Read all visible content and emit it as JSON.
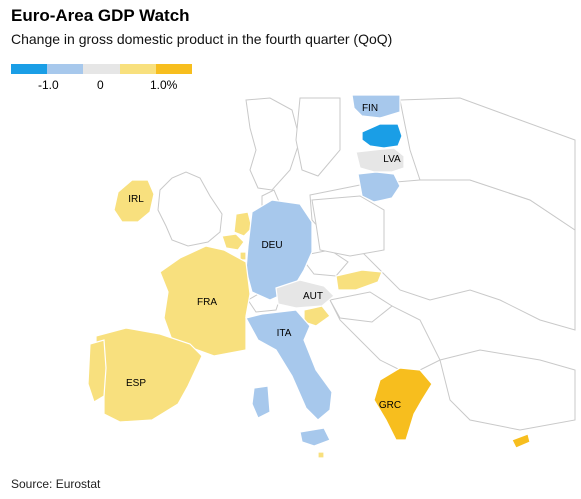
{
  "header": {
    "title": "Euro-Area GDP Watch",
    "subtitle": "Change in gross domestic product in the fourth quarter (QoQ)"
  },
  "legend": {
    "colors": [
      "#1a9ee6",
      "#a7c8ec",
      "#e6e6e6",
      "#f8e07e",
      "#f7be1e"
    ],
    "labels": [
      "-1.0",
      "0",
      "1.0%"
    ]
  },
  "map": {
    "background_fill": "#ffffff",
    "border_color": "#c9c9c9",
    "countries": [
      {
        "code": "FIN",
        "label": "FIN",
        "color": "#a7c8ec"
      },
      {
        "code": "EST",
        "label": "",
        "color": "#1a9ee6"
      },
      {
        "code": "LVA",
        "label": "LVA",
        "color": "#e6e6e6"
      },
      {
        "code": "LTU",
        "label": "",
        "color": "#a7c8ec"
      },
      {
        "code": "IRL",
        "label": "IRL",
        "color": "#f8e07e"
      },
      {
        "code": "NLD",
        "label": "",
        "color": "#f8e07e"
      },
      {
        "code": "BEL",
        "label": "",
        "color": "#f8e07e"
      },
      {
        "code": "LUX",
        "label": "",
        "color": "#f8e07e"
      },
      {
        "code": "DEU",
        "label": "DEU",
        "color": "#a7c8ec"
      },
      {
        "code": "FRA",
        "label": "FRA",
        "color": "#f8e07e"
      },
      {
        "code": "ESP",
        "label": "ESP",
        "color": "#f8e07e"
      },
      {
        "code": "PRT",
        "label": "",
        "color": "#f8e07e"
      },
      {
        "code": "AUT",
        "label": "AUT",
        "color": "#e6e6e6"
      },
      {
        "code": "SVK",
        "label": "",
        "color": "#f8e07e"
      },
      {
        "code": "SVN",
        "label": "",
        "color": "#f8e07e"
      },
      {
        "code": "ITA",
        "label": "ITA",
        "color": "#a7c8ec"
      },
      {
        "code": "GRC",
        "label": "GRC",
        "color": "#f7be1e"
      },
      {
        "code": "CYP",
        "label": "",
        "color": "#f7be1e"
      },
      {
        "code": "MLT",
        "label": "",
        "color": "#f8e07e"
      }
    ]
  },
  "footer": {
    "source": "Source: Eurostat"
  }
}
